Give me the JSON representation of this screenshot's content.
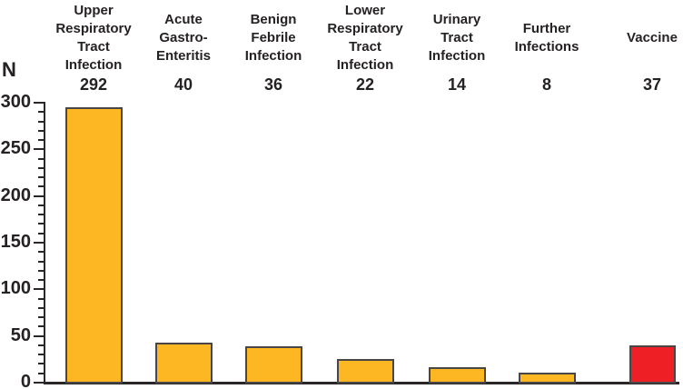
{
  "chart_data": {
    "type": "bar",
    "title": "",
    "ylabel": "N",
    "xlabel": "",
    "categories": [
      "Upper Respiratory Tract Infection",
      "Acute Gastro-Enteritis",
      "Benign Febrile Infection",
      "Lower Respiratory Tract Infection",
      "Urinary Tract Infection",
      "Further Infections",
      "Vaccine"
    ],
    "category_lines": [
      [
        "Upper",
        "Respiratory",
        "Tract",
        "Infection"
      ],
      [
        "Acute",
        "Gastro-",
        "Enteritis"
      ],
      [
        "Benign",
        "Febrile",
        "Infection"
      ],
      [
        "Lower",
        "Respiratory",
        "Tract",
        "Infection"
      ],
      [
        "Urinary",
        "Tract",
        "Infection"
      ],
      [
        "Further",
        "Infections"
      ],
      [
        "Vaccine"
      ]
    ],
    "values": [
      292,
      40,
      36,
      22,
      14,
      8,
      37
    ],
    "ylim": [
      0,
      300
    ],
    "ytick_labels": [
      "0",
      "50",
      "100",
      "150",
      "200",
      "250",
      "300"
    ],
    "ytick_major_step": 50,
    "ytick_minor_step": 10,
    "grid": "off",
    "legend": "none",
    "bar_fill_colors": [
      "#FCB723",
      "#FCB723",
      "#FCB723",
      "#FCB723",
      "#FCB723",
      "#FCB723",
      "#EE1F25"
    ],
    "bar_border_color": "#4A4646",
    "axis_color": "#2B2728",
    "text_color": "#262223"
  }
}
